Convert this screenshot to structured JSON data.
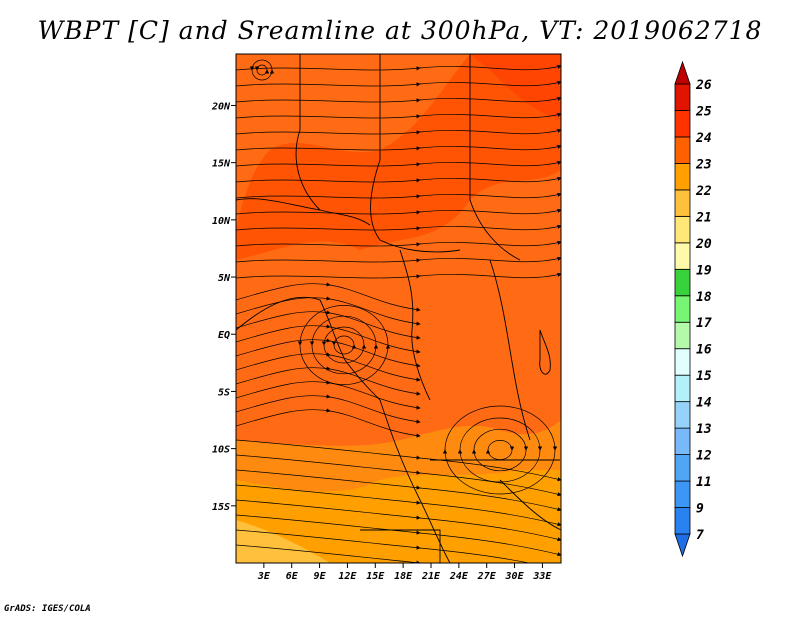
{
  "title": "WBPT [C] and Sreamline at 300hPa, VT: 2019062718",
  "credit": "GrADS: IGES/COLA",
  "map": {
    "lon_range": [
      0,
      35
    ],
    "lat_range": [
      -20,
      24.5
    ],
    "lon_ticks": [
      {
        "value": 3,
        "label": "3E"
      },
      {
        "value": 6,
        "label": "6E"
      },
      {
        "value": 9,
        "label": "9E"
      },
      {
        "value": 12,
        "label": "12E"
      },
      {
        "value": 15,
        "label": "15E"
      },
      {
        "value": 18,
        "label": "18E"
      },
      {
        "value": 21,
        "label": "21E"
      },
      {
        "value": 24,
        "label": "24E"
      },
      {
        "value": 27,
        "label": "27E"
      },
      {
        "value": 30,
        "label": "30E"
      },
      {
        "value": 33,
        "label": "33E"
      }
    ],
    "lat_ticks": [
      {
        "value": 20,
        "label": "20N"
      },
      {
        "value": 15,
        "label": "15N"
      },
      {
        "value": 10,
        "label": "10N"
      },
      {
        "value": 5,
        "label": "5N"
      },
      {
        "value": 0,
        "label": "EQ"
      },
      {
        "value": -5,
        "label": "5S"
      },
      {
        "value": -10,
        "label": "10S"
      },
      {
        "value": -15,
        "label": "15S"
      }
    ]
  },
  "colorbar": {
    "labels": [
      "7",
      "9",
      "11",
      "12",
      "13",
      "14",
      "15",
      "16",
      "17",
      "18",
      "19",
      "20",
      "21",
      "22",
      "23",
      "24",
      "25",
      "26"
    ],
    "colors": [
      "#1e6ee6",
      "#2882f0",
      "#3c96f5",
      "#50a5f5",
      "#78b9fa",
      "#96d2fa",
      "#b4f0fa",
      "#e1ffff",
      "#b4faaa",
      "#78f573",
      "#37d23c",
      "#fffaaa",
      "#ffe878",
      "#ffc03c",
      "#ffa000",
      "#ff6000",
      "#ff3200",
      "#e11400",
      "#c00000"
    ]
  }
}
